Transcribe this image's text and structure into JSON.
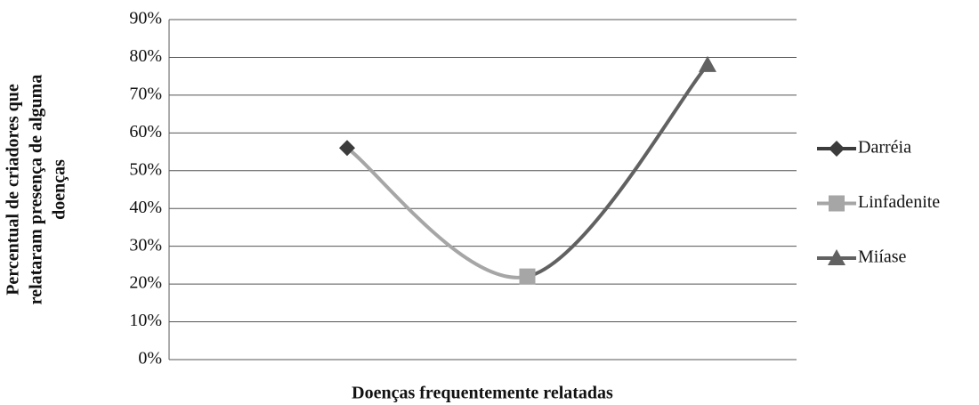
{
  "chart_data": {
    "type": "line",
    "xlabel": "Doenças frequentemente relatadas",
    "ylabel": [
      "Percentual de criadores que",
      "relataram presença de  alguma",
      "doenças"
    ],
    "categories": [
      null,
      null,
      null
    ],
    "series": [
      {
        "name": "Darréia",
        "color": "#3c3c3c",
        "marker": "diamond",
        "values": [
          56,
          null,
          null
        ]
      },
      {
        "name": "Linfadenite",
        "color": "#a6a6a6",
        "marker": "square",
        "values": [
          null,
          22,
          null
        ]
      },
      {
        "name": "Miíase",
        "color": "#616161",
        "marker": "triangle",
        "values": [
          null,
          null,
          78
        ]
      }
    ],
    "ylim": [
      0,
      90
    ],
    "yticks": [
      {
        "value": 0,
        "label": "0%"
      },
      {
        "value": 10,
        "label": "10%"
      },
      {
        "value": 20,
        "label": "20%"
      },
      {
        "value": 30,
        "label": "30%"
      },
      {
        "value": 40,
        "label": "40%"
      },
      {
        "value": 50,
        "label": "50%"
      },
      {
        "value": 60,
        "label": "60%"
      },
      {
        "value": 70,
        "label": "70%"
      },
      {
        "value": 80,
        "label": "80%"
      },
      {
        "value": 90,
        "label": "90%"
      }
    ],
    "grid": true,
    "legend": "right"
  }
}
